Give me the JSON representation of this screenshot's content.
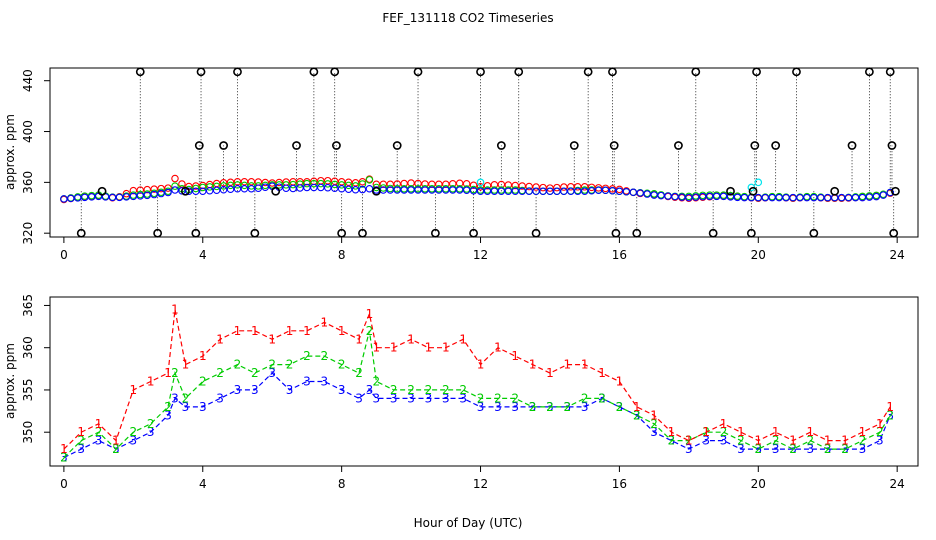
{
  "title": "FEF_131118  CO2 Timeseries",
  "xlabel": "Hour of Day (UTC)",
  "colors": {
    "red": "#ff0000",
    "green": "#00cc00",
    "blue": "#0000ff",
    "black": "#000000",
    "cyan": "#00e5ee"
  },
  "chart_data": [
    {
      "type": "scatter",
      "ylabel": "approx. ppm",
      "xlim": [
        -0.4,
        24.6
      ],
      "ylim": [
        317,
        450
      ],
      "xticks": [
        0,
        4,
        8,
        12,
        16,
        20,
        24
      ],
      "yticks": [
        320,
        360,
        400,
        440
      ],
      "series": [
        {
          "name": "1",
          "color": "#ff0000",
          "marker": "circle"
        },
        {
          "name": "2",
          "color": "#00cc00",
          "marker": "circle"
        },
        {
          "name": "3",
          "color": "#0000ff",
          "marker": "circle"
        },
        {
          "name": "black",
          "color": "#000000",
          "marker": "circle"
        }
      ],
      "spike_points": [
        {
          "x": 0.5,
          "y": 320
        },
        {
          "x": 2.2,
          "y": 447
        },
        {
          "x": 2.7,
          "y": 320
        },
        {
          "x": 3.8,
          "y": 320
        },
        {
          "x": 3.9,
          "y": 389
        },
        {
          "x": 3.95,
          "y": 447
        },
        {
          "x": 4.6,
          "y": 389
        },
        {
          "x": 5.0,
          "y": 447
        },
        {
          "x": 5.5,
          "y": 320
        },
        {
          "x": 6.7,
          "y": 389
        },
        {
          "x": 7.2,
          "y": 447
        },
        {
          "x": 7.8,
          "y": 447
        },
        {
          "x": 7.85,
          "y": 389
        },
        {
          "x": 8.0,
          "y": 320
        },
        {
          "x": 8.6,
          "y": 320
        },
        {
          "x": 9.6,
          "y": 389
        },
        {
          "x": 10.2,
          "y": 447
        },
        {
          "x": 10.7,
          "y": 320
        },
        {
          "x": 11.8,
          "y": 320
        },
        {
          "x": 12.0,
          "y": 447
        },
        {
          "x": 12.6,
          "y": 389
        },
        {
          "x": 13.1,
          "y": 447
        },
        {
          "x": 13.6,
          "y": 320
        },
        {
          "x": 14.7,
          "y": 389
        },
        {
          "x": 15.1,
          "y": 447
        },
        {
          "x": 15.8,
          "y": 447
        },
        {
          "x": 15.85,
          "y": 389
        },
        {
          "x": 15.9,
          "y": 320
        },
        {
          "x": 16.5,
          "y": 320
        },
        {
          "x": 17.7,
          "y": 389
        },
        {
          "x": 18.2,
          "y": 447
        },
        {
          "x": 18.7,
          "y": 320
        },
        {
          "x": 19.8,
          "y": 320
        },
        {
          "x": 19.85,
          "y": 353
        },
        {
          "x": 19.9,
          "y": 389
        },
        {
          "x": 19.95,
          "y": 447
        },
        {
          "x": 20.5,
          "y": 389
        },
        {
          "x": 21.1,
          "y": 447
        },
        {
          "x": 21.6,
          "y": 320
        },
        {
          "x": 22.7,
          "y": 389
        },
        {
          "x": 23.2,
          "y": 447
        },
        {
          "x": 23.8,
          "y": 447
        },
        {
          "x": 23.85,
          "y": 389
        },
        {
          "x": 23.9,
          "y": 320
        },
        {
          "x": 23.95,
          "y": 353
        },
        {
          "x": 1.1,
          "y": 353
        },
        {
          "x": 3.5,
          "y": 353
        },
        {
          "x": 6.1,
          "y": 353
        },
        {
          "x": 9.0,
          "y": 353
        },
        {
          "x": 19.2,
          "y": 353
        },
        {
          "x": 22.2,
          "y": 353
        }
      ],
      "cyan_points": [
        {
          "x": 12.0,
          "y": 360
        },
        {
          "x": 19.8,
          "y": 356
        },
        {
          "x": 20.0,
          "y": 360
        }
      ]
    },
    {
      "type": "line",
      "ylabel": "approx. ppm",
      "xlim": [
        -0.4,
        24.6
      ],
      "ylim": [
        346,
        366
      ],
      "xticks": [
        0,
        4,
        8,
        12,
        16,
        20,
        24
      ],
      "yticks": [
        350,
        355,
        360,
        365
      ],
      "series": [
        {
          "name": "1",
          "color": "#ff0000",
          "marker": "1"
        },
        {
          "name": "2",
          "color": "#00cc00",
          "marker": "2"
        },
        {
          "name": "3",
          "color": "#0000ff",
          "marker": "3"
        }
      ],
      "x": [
        0,
        0.5,
        1,
        1.5,
        2,
        2.5,
        3,
        3.2,
        3.5,
        4,
        4.5,
        5,
        5.5,
        6,
        6.5,
        7,
        7.5,
        8,
        8.5,
        8.8,
        9,
        9.5,
        10,
        10.5,
        11,
        11.5,
        12,
        12.5,
        13,
        13.5,
        14,
        14.5,
        15,
        15.5,
        16,
        16.5,
        17,
        17.5,
        18,
        18.5,
        19,
        19.5,
        20,
        20.5,
        21,
        21.5,
        22,
        22.5,
        23,
        23.5,
        23.8
      ],
      "values_1": [
        348,
        350,
        351,
        349,
        355,
        356,
        357,
        364.5,
        358,
        359,
        361,
        362,
        362,
        361,
        362,
        362,
        363,
        362,
        361,
        364,
        360,
        360,
        361,
        360,
        360,
        361,
        358,
        360,
        359,
        358,
        357,
        358,
        358,
        357,
        356,
        353,
        352,
        350,
        349,
        350,
        351,
        350,
        349,
        350,
        349,
        350,
        349,
        349,
        350,
        351,
        353
      ],
      "values_2": [
        347,
        349,
        350,
        348,
        350,
        351,
        353,
        357,
        354,
        356,
        357,
        358,
        357,
        358,
        358,
        359,
        359,
        358,
        357,
        362,
        356,
        355,
        355,
        355,
        355,
        355,
        354,
        354,
        354,
        353,
        353,
        353,
        354,
        354,
        353,
        352,
        351,
        349,
        349,
        350,
        350,
        349,
        348,
        349,
        348,
        349,
        348,
        348,
        349,
        350,
        352
      ],
      "values_3": [
        347,
        348,
        349,
        348,
        349,
        350,
        352,
        354,
        353,
        353,
        354,
        355,
        355,
        357,
        355,
        356,
        356,
        355,
        354,
        355,
        354,
        354,
        354,
        354,
        354,
        354,
        353,
        353,
        353,
        353,
        353,
        353,
        353,
        354,
        353,
        352,
        350,
        349,
        348,
        349,
        349,
        348,
        348,
        348,
        348,
        348,
        348,
        348,
        348,
        349,
        352
      ]
    }
  ]
}
